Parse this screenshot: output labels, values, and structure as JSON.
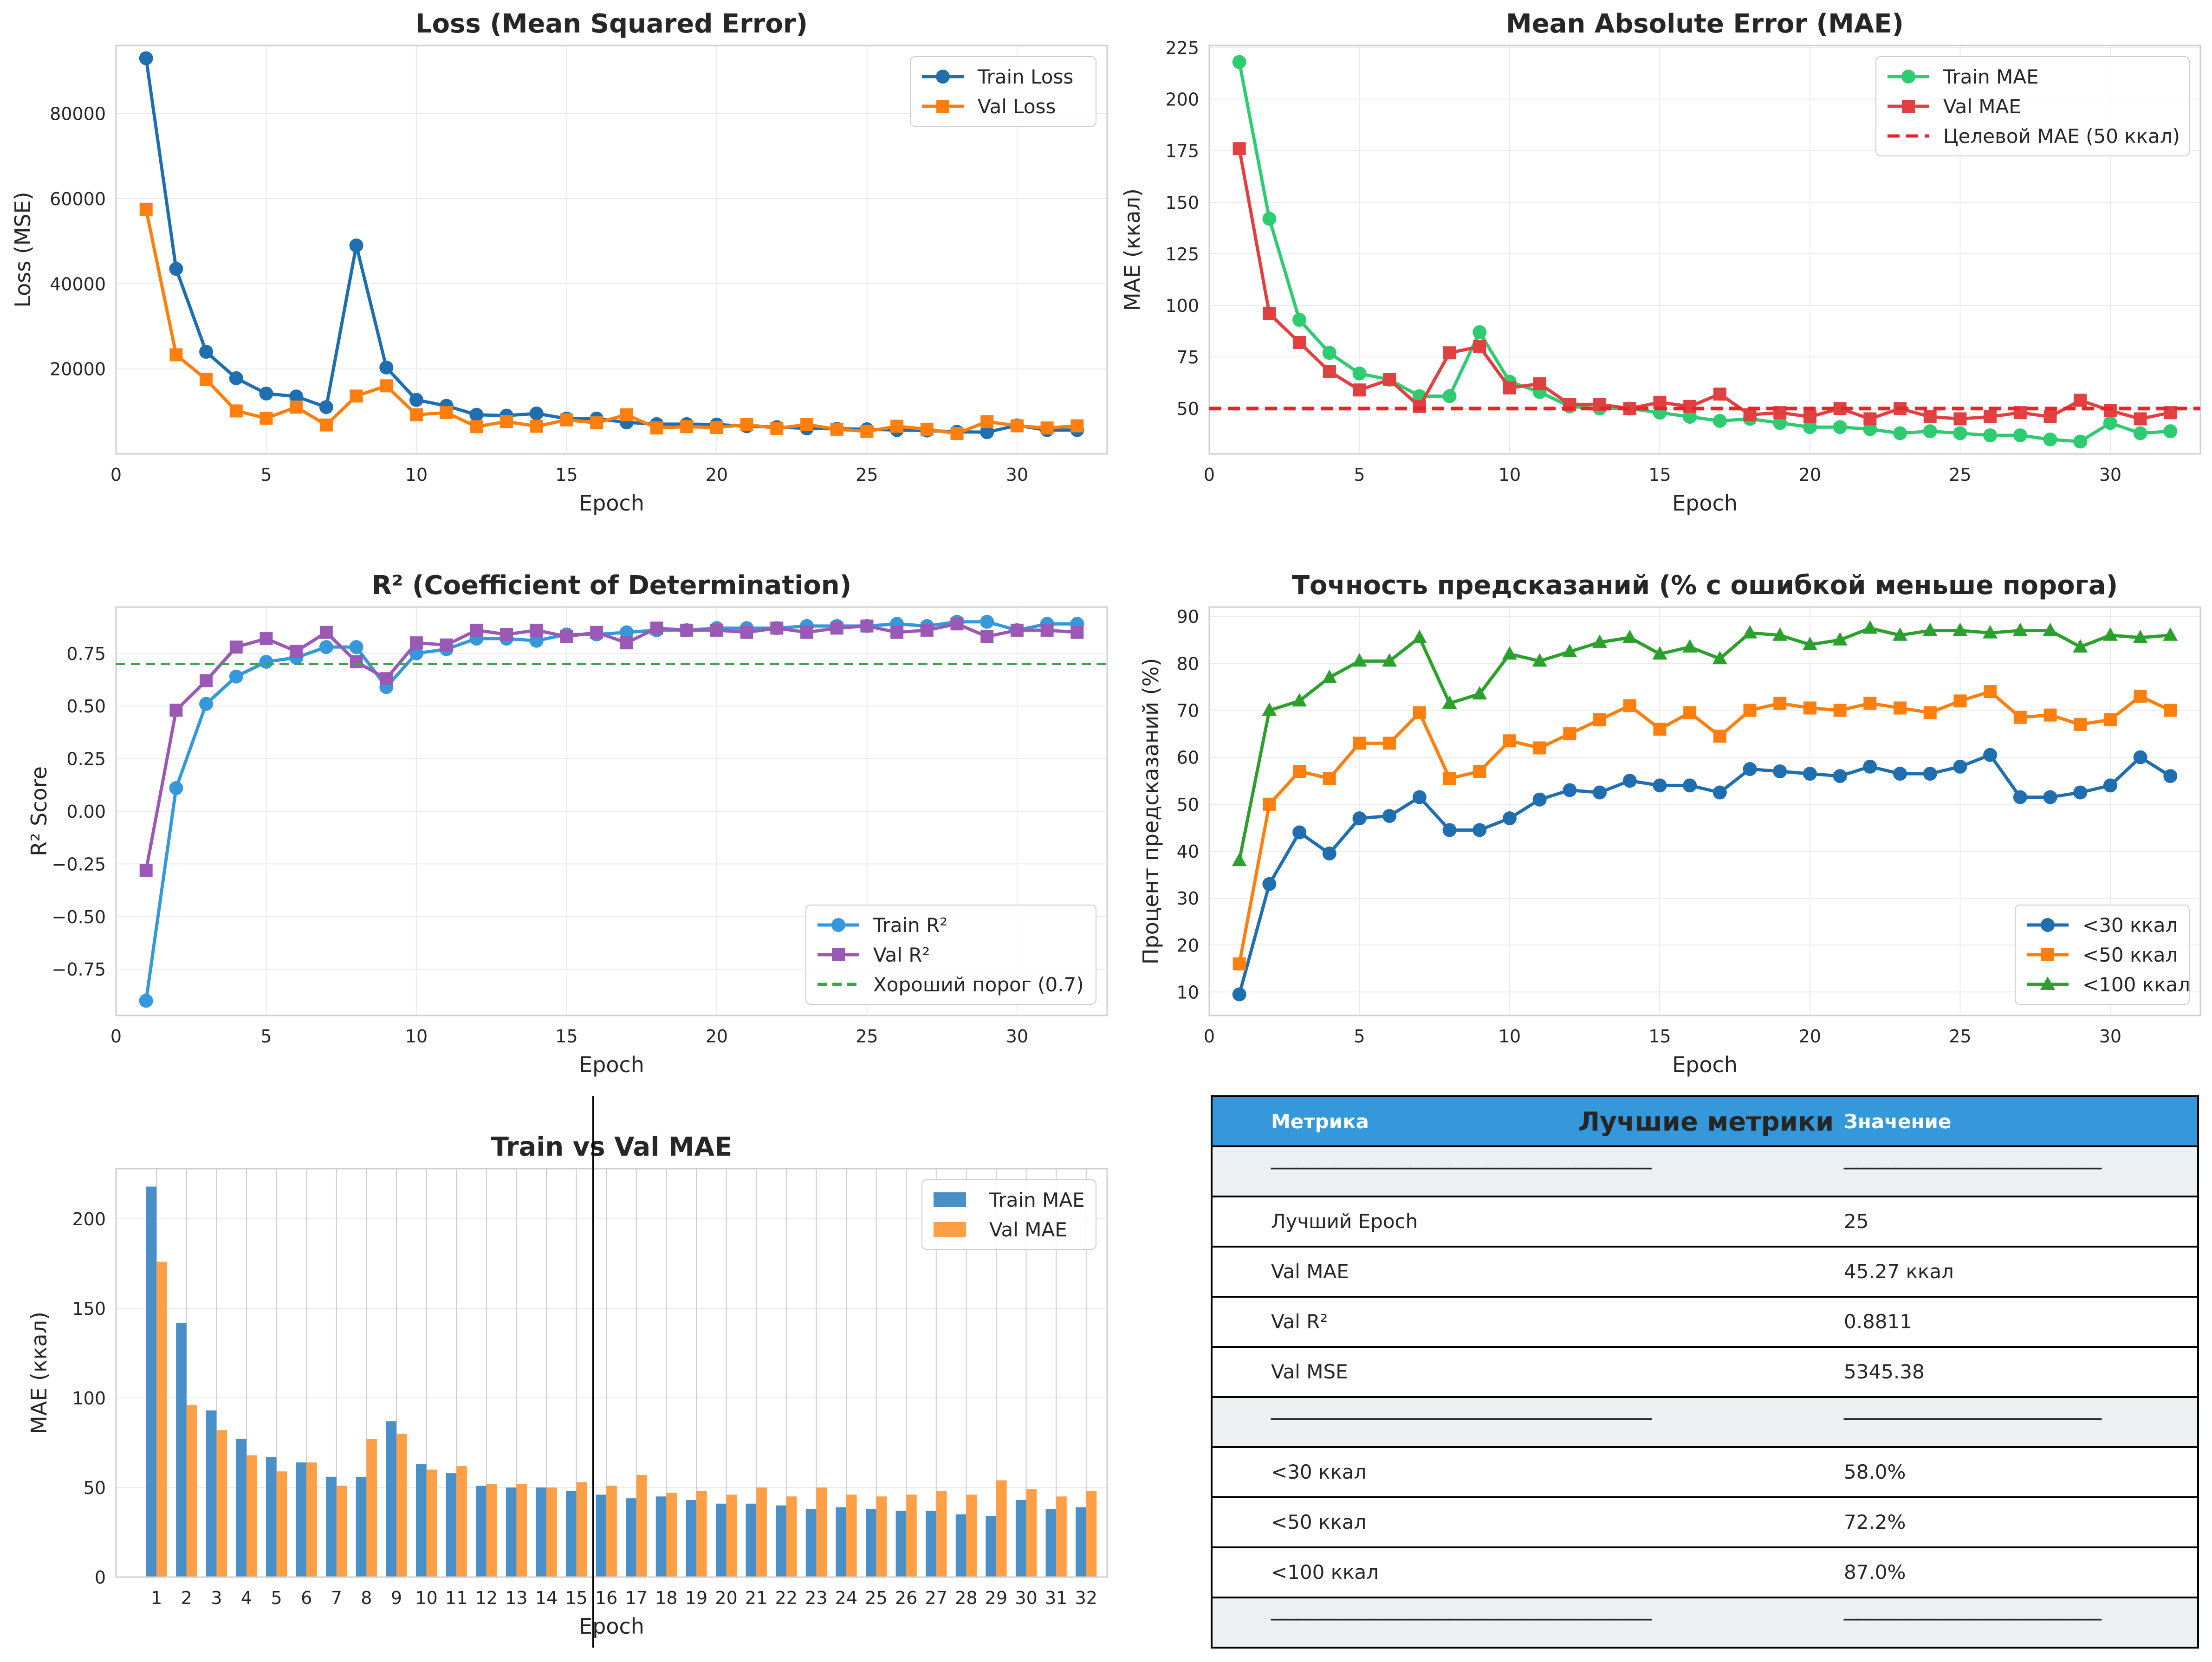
{
  "colors": {
    "train_loss": "#1f6fb0",
    "val_loss": "#ff7f0e",
    "train_mae": "#2ecc71",
    "val_mae": "#e04040",
    "target": "#e8242a",
    "train_r2": "#3498db",
    "val_r2": "#9b59b6",
    "good_r2": "#3fa34d",
    "acc30": "#1f6fb0",
    "acc50": "#ff7f0e",
    "acc100": "#2ca02c",
    "bar_train": "#4a90c8",
    "bar_val": "#ff9f45",
    "table_header": "#3498db",
    "table_sep_row": "#ecf0f1"
  },
  "chart_data": [
    {
      "type": "line",
      "title": "Loss (Mean Squared Error)",
      "xlabel": "Epoch",
      "ylabel": "Loss (MSE)",
      "xlim": [
        0,
        33
      ],
      "ylim": [
        0,
        96000
      ],
      "xticks": [
        0,
        5,
        10,
        15,
        20,
        25,
        30
      ],
      "yticks": [
        20000,
        40000,
        60000,
        80000
      ],
      "legend": "top-right",
      "grid": true,
      "x": [
        1,
        2,
        3,
        4,
        5,
        6,
        7,
        8,
        9,
        10,
        11,
        12,
        13,
        14,
        15,
        16,
        17,
        18,
        19,
        20,
        21,
        22,
        23,
        24,
        25,
        26,
        27,
        28,
        29,
        30,
        31,
        32
      ],
      "series": [
        {
          "name": "Train Loss",
          "marker": "circle",
          "values": [
            93000,
            43500,
            24000,
            17800,
            14200,
            13500,
            11000,
            49000,
            20300,
            12700,
            11300,
            9200,
            9000,
            9500,
            8300,
            8300,
            7400,
            7000,
            7000,
            6900,
            6500,
            6300,
            6000,
            5900,
            5800,
            5600,
            5500,
            5200,
            5100,
            6700,
            5600,
            5600
          ]
        },
        {
          "name": "Val Loss",
          "marker": "square",
          "values": [
            57500,
            23300,
            17500,
            10100,
            8400,
            11000,
            6800,
            13600,
            16000,
            9200,
            9700,
            6400,
            7600,
            6500,
            8000,
            7300,
            9200,
            6100,
            6400,
            6200,
            6900,
            6000,
            6900,
            5800,
            5300,
            6500,
            5800,
            4800,
            7600,
            6600,
            6100,
            6600
          ]
        }
      ]
    },
    {
      "type": "line",
      "title": "Mean Absolute Error (MAE)",
      "xlabel": "Epoch",
      "ylabel": "MAE (ккал)",
      "xlim": [
        0,
        33
      ],
      "ylim": [
        28,
        226
      ],
      "xticks": [
        0,
        5,
        10,
        15,
        20,
        25,
        30
      ],
      "yticks": [
        50,
        75,
        100,
        125,
        150,
        175,
        200,
        225
      ],
      "legend": "top-right",
      "grid": true,
      "x": [
        1,
        2,
        3,
        4,
        5,
        6,
        7,
        8,
        9,
        10,
        11,
        12,
        13,
        14,
        15,
        16,
        17,
        18,
        19,
        20,
        21,
        22,
        23,
        24,
        25,
        26,
        27,
        28,
        29,
        30,
        31,
        32
      ],
      "series": [
        {
          "name": "Train MAE",
          "marker": "circle",
          "values": [
            218,
            142,
            93,
            77,
            67,
            64,
            56,
            56,
            87,
            63,
            58,
            51,
            50,
            50,
            48,
            46,
            44,
            45,
            43,
            41,
            41,
            40,
            38,
            39,
            38,
            37,
            37,
            35,
            34,
            43,
            38,
            39
          ]
        },
        {
          "name": "Val MAE",
          "marker": "square",
          "values": [
            176,
            96,
            82,
            68,
            59,
            64,
            51,
            77,
            80,
            60,
            62,
            52,
            52,
            50,
            53,
            51,
            57,
            47,
            48,
            46,
            50,
            45,
            50,
            46,
            45,
            46,
            48,
            46,
            54,
            49,
            45,
            48
          ]
        }
      ],
      "reference_line": {
        "name": "Целевой MAE (50 ккал)",
        "value": 50
      }
    },
    {
      "type": "line",
      "title": "R² (Coefficient of Determination)",
      "xlabel": "Epoch",
      "ylabel": "R² Score",
      "xlim": [
        0,
        33
      ],
      "ylim": [
        -0.97,
        0.97
      ],
      "xticks": [
        0,
        5,
        10,
        15,
        20,
        25,
        30
      ],
      "yticks": [
        -0.75,
        -0.5,
        -0.25,
        0.0,
        0.25,
        0.5,
        0.75
      ],
      "ytick_labels": [
        "−0.75",
        "−0.50",
        "−0.25",
        "0.00",
        "0.25",
        "0.50",
        "0.75"
      ],
      "legend": "bottom-right",
      "grid": true,
      "x": [
        1,
        2,
        3,
        4,
        5,
        6,
        7,
        8,
        9,
        10,
        11,
        12,
        13,
        14,
        15,
        16,
        17,
        18,
        19,
        20,
        21,
        22,
        23,
        24,
        25,
        26,
        27,
        28,
        29,
        30,
        31,
        32
      ],
      "series": [
        {
          "name": "Train R²",
          "marker": "circle",
          "values": [
            -0.9,
            0.11,
            0.51,
            0.64,
            0.71,
            0.73,
            0.78,
            0.78,
            0.59,
            0.75,
            0.77,
            0.82,
            0.82,
            0.81,
            0.84,
            0.84,
            0.85,
            0.86,
            0.86,
            0.87,
            0.87,
            0.87,
            0.88,
            0.88,
            0.88,
            0.89,
            0.88,
            0.9,
            0.9,
            0.86,
            0.89,
            0.89
          ]
        },
        {
          "name": "Val R²",
          "marker": "square",
          "values": [
            -0.28,
            0.48,
            0.62,
            0.78,
            0.82,
            0.76,
            0.85,
            0.71,
            0.63,
            0.8,
            0.79,
            0.86,
            0.84,
            0.86,
            0.83,
            0.85,
            0.8,
            0.87,
            0.86,
            0.86,
            0.85,
            0.87,
            0.85,
            0.87,
            0.88,
            0.85,
            0.86,
            0.89,
            0.83,
            0.86,
            0.86,
            0.85
          ]
        }
      ],
      "reference_line": {
        "name": "Хороший порог (0.7)",
        "value": 0.7
      }
    },
    {
      "type": "line",
      "title": "Точность предсказаний (% с ошибкой меньше порога)",
      "xlabel": "Epoch",
      "ylabel": "Процент предсказаний (%)",
      "xlim": [
        0,
        33
      ],
      "ylim": [
        5,
        92
      ],
      "xticks": [
        0,
        5,
        10,
        15,
        20,
        25,
        30
      ],
      "yticks": [
        10,
        20,
        30,
        40,
        50,
        60,
        70,
        80,
        90
      ],
      "legend": "bottom-right",
      "grid": true,
      "x": [
        1,
        2,
        3,
        4,
        5,
        6,
        7,
        8,
        9,
        10,
        11,
        12,
        13,
        14,
        15,
        16,
        17,
        18,
        19,
        20,
        21,
        22,
        23,
        24,
        25,
        26,
        27,
        28,
        29,
        30,
        31,
        32
      ],
      "series": [
        {
          "name": "<30 ккал",
          "marker": "circle",
          "values": [
            9.5,
            33,
            44,
            39.5,
            47,
            47.5,
            51.5,
            44.5,
            44.5,
            47,
            51,
            53,
            52.5,
            55,
            54,
            54,
            52.5,
            57.5,
            57,
            56.5,
            56,
            58,
            56.5,
            56.5,
            58,
            60.5,
            51.5,
            51.5,
            52.5,
            54,
            60,
            56
          ]
        },
        {
          "name": "<50 ккал",
          "marker": "square",
          "values": [
            16,
            50,
            57,
            55.5,
            63,
            63,
            69.5,
            55.5,
            57,
            63.5,
            62,
            65,
            68,
            71,
            66,
            69.5,
            64.5,
            70,
            71.5,
            70.5,
            70,
            71.5,
            70.5,
            69.5,
            72,
            74,
            68.5,
            69,
            67,
            68,
            73,
            70
          ]
        },
        {
          "name": "<100 ккал",
          "marker": "triangle",
          "values": [
            38,
            70,
            72,
            77,
            80.5,
            80.5,
            85.5,
            71.5,
            73.5,
            82,
            80.5,
            82.5,
            84.5,
            85.5,
            82,
            83.5,
            81,
            86.5,
            86,
            84,
            85,
            87.5,
            86,
            87,
            87,
            86.5,
            87,
            87,
            83.5,
            86,
            85.5,
            86
          ]
        }
      ]
    },
    {
      "type": "bar",
      "title": "Train vs Val MAE",
      "xlabel": "Epoch",
      "ylabel": "MAE (ккал)",
      "ylim": [
        0,
        228
      ],
      "yticks": [
        0,
        50,
        100,
        150,
        200
      ],
      "legend": "top-right",
      "grid": true,
      "categories": [
        "1",
        "2",
        "3",
        "4",
        "5",
        "6",
        "7",
        "8",
        "9",
        "10",
        "11",
        "12",
        "13",
        "14",
        "15",
        "16",
        "17",
        "18",
        "19",
        "20",
        "21",
        "22",
        "23",
        "24",
        "25",
        "26",
        "27",
        "28",
        "29",
        "30",
        "31",
        "32"
      ],
      "series": [
        {
          "name": "Train MAE",
          "values": [
            218,
            142,
            93,
            77,
            67,
            64,
            56,
            56,
            87,
            63,
            58,
            51,
            50,
            50,
            48,
            46,
            44,
            45,
            43,
            41,
            41,
            40,
            38,
            39,
            38,
            37,
            37,
            35,
            34,
            43,
            38,
            39
          ]
        },
        {
          "name": "Val MAE",
          "values": [
            176,
            96,
            82,
            68,
            59,
            64,
            51,
            77,
            80,
            60,
            62,
            52,
            52,
            50,
            53,
            51,
            57,
            47,
            48,
            46,
            50,
            45,
            50,
            46,
            45,
            46,
            48,
            46,
            54,
            49,
            45,
            48
          ]
        }
      ]
    }
  ],
  "table": {
    "title": "Лучшие метрики",
    "headers": [
      "Метрика",
      "Значение"
    ],
    "rows": [
      {
        "sep": true,
        "cells": [
          "──────────────────────────────",
          "────────────────────"
        ]
      },
      {
        "sep": false,
        "cells": [
          "Лучший Epoch",
          "25"
        ]
      },
      {
        "sep": false,
        "cells": [
          "Val MAE",
          "45.27 ккал"
        ]
      },
      {
        "sep": false,
        "cells": [
          "Val R²",
          "0.8811"
        ]
      },
      {
        "sep": false,
        "cells": [
          "Val MSE",
          "5345.38"
        ]
      },
      {
        "sep": true,
        "cells": [
          "──────────────────────────────",
          "────────────────────"
        ]
      },
      {
        "sep": false,
        "cells": [
          "<30 ккал",
          "58.0%"
        ]
      },
      {
        "sep": false,
        "cells": [
          "<50 ккал",
          "72.2%"
        ]
      },
      {
        "sep": false,
        "cells": [
          "<100 ккал",
          "87.0%"
        ]
      },
      {
        "sep": true,
        "cells": [
          "──────────────────────────────",
          "────────────────────"
        ]
      }
    ]
  }
}
